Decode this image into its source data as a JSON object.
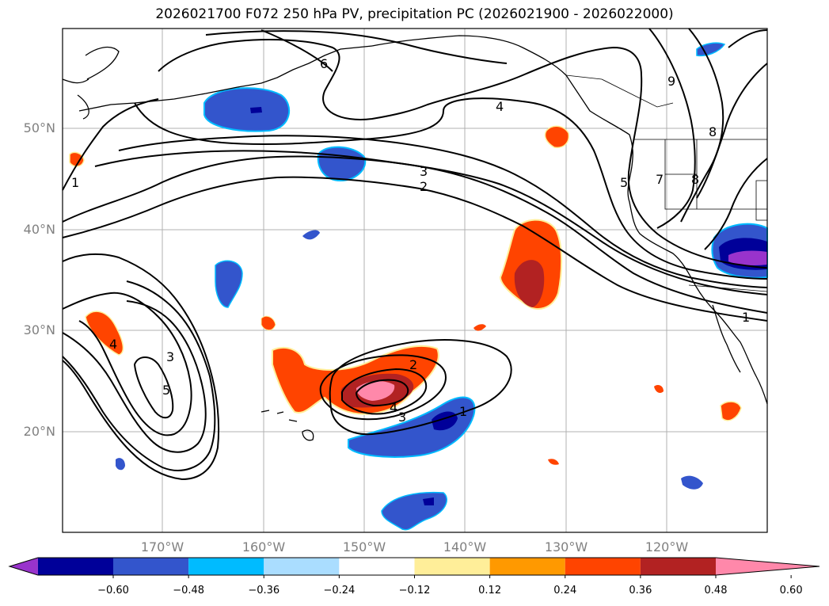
{
  "title": "2026021700 F072 250 hPa PV, precipitation PC (2026021900 - 2026022000)",
  "map": {
    "lat_labels": [
      "50°N",
      "40°N",
      "30°N",
      "20°N"
    ],
    "lon_labels": [
      "170°W",
      "160°W",
      "150°W",
      "140°W",
      "130°W",
      "120°W"
    ],
    "pv_contour_labels": [
      "1",
      "2",
      "3",
      "4",
      "5",
      "6",
      "7",
      "8",
      "9"
    ]
  },
  "colorbar": {
    "colors": [
      "#9933cc",
      "#000099",
      "#3355cc",
      "#00bbff",
      "#aaddff",
      "#ffffff",
      "#ffee99",
      "#ff9900",
      "#ff4400",
      "#b22222",
      "#ff88aa"
    ],
    "ticks": [
      "−0.60",
      "−0.48",
      "−0.36",
      "−0.24",
      "−0.12",
      "0.12",
      "0.24",
      "0.36",
      "0.48",
      "0.60"
    ]
  },
  "colors": {
    "grid": "#b0b0b0",
    "coast": "#000000",
    "contour": "#000000"
  }
}
